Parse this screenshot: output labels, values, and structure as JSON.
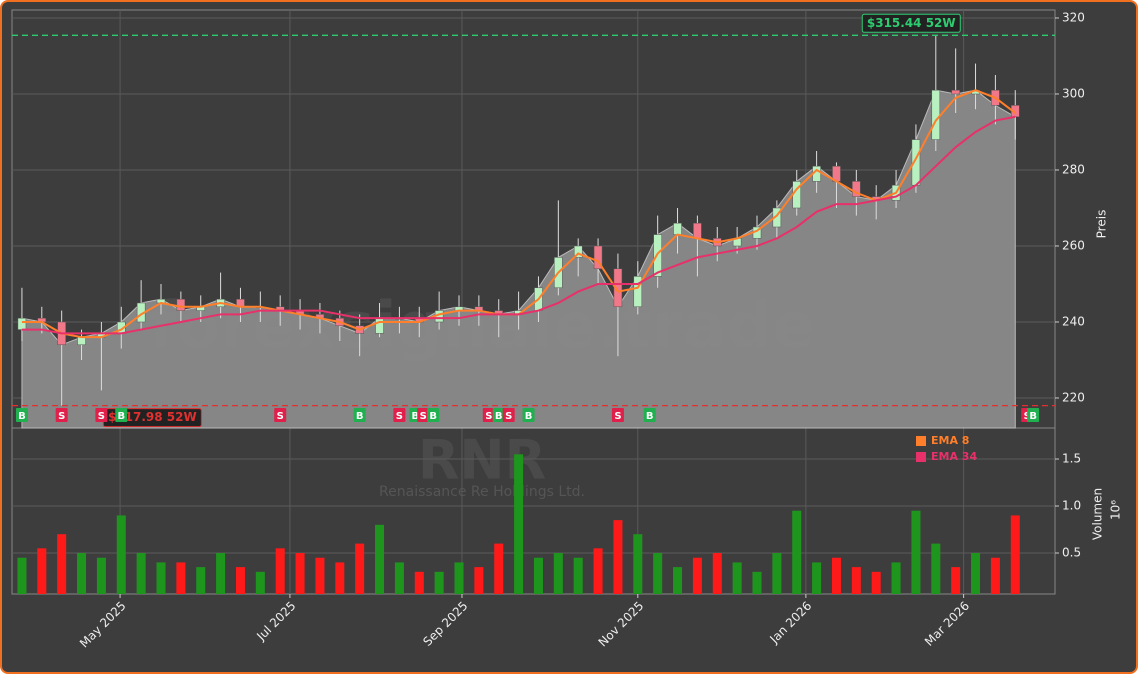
{
  "chart_data": {
    "type": "candlestick",
    "watermark": "forexsignale.trade",
    "symbol": "RNR",
    "company": "Renaissance Re Holdings Ltd.",
    "price_label": "Preis",
    "volume_label": "Volumen",
    "volume_unit": "10⁶",
    "up_color": "#b8f0c0",
    "down_color": "#f07888",
    "volume_up_color": "#1e961e",
    "volume_down_color": "#ff1a1a",
    "area_color": "#8a8a8a",
    "grid": true,
    "xlim": [
      -0.5,
      52
    ],
    "xticks": [
      {
        "value": 4.94,
        "label": "May 2025"
      },
      {
        "value": 13.49,
        "label": "Jul 2025"
      },
      {
        "value": 22.15,
        "label": "Sep 2025"
      },
      {
        "value": 31.0,
        "label": "Nov 2025"
      },
      {
        "value": 39.46,
        "label": "Jan 2026"
      },
      {
        "value": 47.4,
        "label": "Mar 2026"
      }
    ],
    "ylim": [
      212.1,
      322.1
    ],
    "yticks": [
      220,
      240,
      260,
      280,
      300,
      320
    ],
    "y2lim": [
      0.064,
      1.83
    ],
    "y2ticks": [
      0.5,
      {
        "value": 1.0,
        "label": "1.0"
      },
      1.5
    ],
    "open": [
      238,
      241,
      240,
      234,
      236,
      237,
      240,
      245,
      246,
      243,
      244,
      246,
      244,
      244,
      243,
      242,
      241,
      239,
      237,
      241,
      241,
      240,
      243,
      244,
      243,
      242,
      243,
      249,
      257,
      260,
      254,
      244,
      252,
      263,
      266,
      262,
      260,
      262,
      265,
      270,
      277,
      281,
      277,
      273,
      272,
      276,
      288,
      301,
      300,
      301,
      297
    ],
    "high": [
      249,
      244,
      243,
      238,
      240,
      244,
      251,
      250,
      248,
      247,
      253,
      249,
      248,
      247,
      246,
      245,
      243,
      242,
      245,
      244,
      244,
      248,
      247,
      247,
      246,
      248,
      252,
      272,
      262,
      262,
      258,
      256,
      268,
      270,
      268,
      265,
      265,
      268,
      272,
      280,
      285,
      282,
      280,
      276,
      280,
      292,
      315.44,
      312,
      308,
      305,
      301
    ],
    "low": [
      235,
      237,
      217.98,
      230,
      222,
      233,
      238,
      242,
      240,
      240,
      241,
      240,
      240,
      239,
      238,
      237,
      235,
      231,
      236,
      237,
      236,
      238,
      239,
      239,
      236,
      238,
      240,
      247,
      252,
      250,
      231,
      242,
      249,
      258,
      252,
      256,
      258,
      259,
      262,
      268,
      274,
      270,
      268,
      267,
      270,
      274,
      285,
      295,
      296,
      292,
      288
    ],
    "close": [
      241,
      240,
      234,
      236,
      237,
      240,
      245,
      246,
      243,
      244,
      246,
      244,
      244,
      243,
      242,
      241,
      239,
      237,
      241,
      241,
      240,
      243,
      244,
      243,
      242,
      243,
      249,
      257,
      260,
      254,
      244,
      252,
      263,
      266,
      262,
      260,
      262,
      265,
      270,
      277,
      281,
      277,
      273,
      272,
      276,
      288,
      301,
      300,
      301,
      297,
      294
    ],
    "volume": [
      0.45,
      0.55,
      0.7,
      0.5,
      0.45,
      0.9,
      0.5,
      0.4,
      0.4,
      0.35,
      0.5,
      0.35,
      0.3,
      0.55,
      0.5,
      0.45,
      0.4,
      0.6,
      0.8,
      0.4,
      0.3,
      0.3,
      0.4,
      0.35,
      0.6,
      1.55,
      0.45,
      0.5,
      0.45,
      0.55,
      0.85,
      0.7,
      0.5,
      0.35,
      0.45,
      0.5,
      0.4,
      0.3,
      0.5,
      0.95,
      0.4,
      0.45,
      0.35,
      0.3,
      0.4,
      0.95,
      0.6,
      0.35,
      0.5,
      0.45,
      0.9
    ],
    "series": [
      {
        "name": "EMA 8",
        "color": "#ff7f2a",
        "values": [
          240,
          240,
          237,
          236,
          236,
          238,
          242,
          245,
          244,
          244,
          245,
          244,
          244,
          243,
          242,
          241,
          240,
          238,
          240,
          240,
          240,
          242,
          243,
          243,
          242,
          242,
          246,
          253,
          258,
          256,
          248,
          249,
          258,
          263,
          262,
          261,
          262,
          264,
          268,
          275,
          280,
          277,
          274,
          272,
          274,
          283,
          293,
          299,
          301,
          299,
          295
        ]
      },
      {
        "name": "EMA 34",
        "color": "#e8306a",
        "values": [
          238,
          238,
          237,
          237,
          237,
          237,
          238,
          239,
          240,
          241,
          242,
          242,
          243,
          243,
          243,
          243,
          242,
          241,
          241,
          241,
          241,
          241,
          241,
          242,
          242,
          242,
          243,
          245,
          248,
          250,
          250,
          250,
          253,
          255,
          257,
          258,
          259,
          260,
          262,
          265,
          269,
          271,
          271,
          272,
          273,
          276,
          281,
          286,
          290,
          293,
          294
        ]
      }
    ],
    "levels": [
      {
        "value": 315.44,
        "label": "$315.44 52W",
        "color": "#2ecc71",
        "x": 42.5
      },
      {
        "value": 217.98,
        "label": "$217.98 52W",
        "color": "#e03030",
        "x": 4.3
      }
    ],
    "signals": [
      {
        "x": 0,
        "label": "B",
        "color": "#20b050"
      },
      {
        "x": 2,
        "label": "S",
        "color": "#e0204a"
      },
      {
        "x": 4,
        "label": "S",
        "color": "#e0204a"
      },
      {
        "x": 5,
        "label": "B",
        "color": "#20b050"
      },
      {
        "x": 13,
        "label": "S",
        "color": "#e0204a"
      },
      {
        "x": 17,
        "label": "B",
        "color": "#20b050"
      },
      {
        "x": 19,
        "label": "S",
        "color": "#e0204a"
      },
      {
        "x": 19.8,
        "label": "B",
        "color": "#20b050"
      },
      {
        "x": 20.2,
        "label": "S",
        "color": "#e0204a"
      },
      {
        "x": 20.7,
        "label": "B",
        "color": "#20b050"
      },
      {
        "x": 23.5,
        "label": "S",
        "color": "#e0204a"
      },
      {
        "x": 24,
        "label": "B",
        "color": "#20b050"
      },
      {
        "x": 24.5,
        "label": "S",
        "color": "#e0204a"
      },
      {
        "x": 25.5,
        "label": "B",
        "color": "#20b050"
      },
      {
        "x": 30,
        "label": "S",
        "color": "#e0204a"
      },
      {
        "x": 31.6,
        "label": "B",
        "color": "#20b050"
      },
      {
        "x": 50.6,
        "label": "S",
        "color": "#e0204a"
      },
      {
        "x": 50.9,
        "label": "B",
        "color": "#20b050"
      }
    ]
  }
}
